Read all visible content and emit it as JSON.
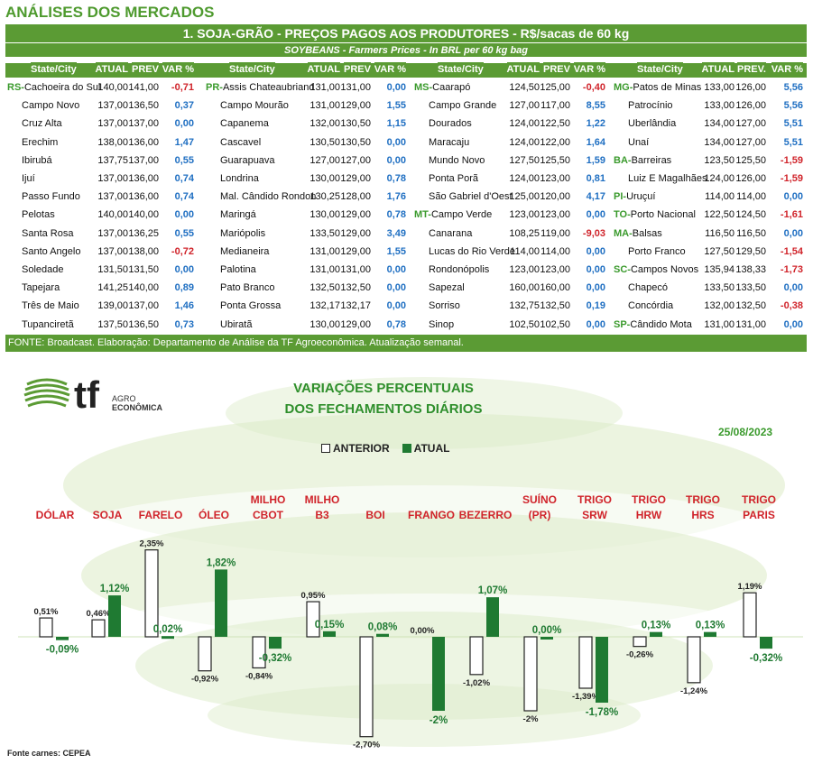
{
  "section_title": "ANÁLISES DOS MERCADOS",
  "table": {
    "title": "1. SOJA-GRÃO - PREÇOS PAGOS AOS PRODUTORES - R$/sacas de 60 kg",
    "subtitle": "SOYBEANS - Farmers Prices - In BRL per 60 kg bag",
    "footer": "FONTE: Broadcast. Elaboração: Departamento de Análise da TF Agroeconômica. Atualização semanal.",
    "groups": [
      {
        "headers": [
          "State/City",
          "ATUAL",
          "PREV",
          "VAR %"
        ],
        "rows": [
          {
            "code": "RS",
            "city": "Cachoeira do Sul",
            "atual": "140,00",
            "prev": "141,00",
            "var": "-0,71"
          },
          {
            "code": "",
            "city": "Campo Novo",
            "atual": "137,00",
            "prev": "136,50",
            "var": "0,37"
          },
          {
            "code": "",
            "city": "Cruz Alta",
            "atual": "137,00",
            "prev": "137,00",
            "var": "0,00"
          },
          {
            "code": "",
            "city": "Erechim",
            "atual": "138,00",
            "prev": "136,00",
            "var": "1,47"
          },
          {
            "code": "",
            "city": "Ibirubá",
            "atual": "137,75",
            "prev": "137,00",
            "var": "0,55"
          },
          {
            "code": "",
            "city": "Ijuí",
            "atual": "137,00",
            "prev": "136,00",
            "var": "0,74"
          },
          {
            "code": "",
            "city": "Passo Fundo",
            "atual": "137,00",
            "prev": "136,00",
            "var": "0,74"
          },
          {
            "code": "",
            "city": "Pelotas",
            "atual": "140,00",
            "prev": "140,00",
            "var": "0,00"
          },
          {
            "code": "",
            "city": "Santa Rosa",
            "atual": "137,00",
            "prev": "136,25",
            "var": "0,55"
          },
          {
            "code": "",
            "city": "Santo Angelo",
            "atual": "137,00",
            "prev": "138,00",
            "var": "-0,72"
          },
          {
            "code": "",
            "city": "Soledade",
            "atual": "131,50",
            "prev": "131,50",
            "var": "0,00"
          },
          {
            "code": "",
            "city": "Tapejara",
            "atual": "141,25",
            "prev": "140,00",
            "var": "0,89"
          },
          {
            "code": "",
            "city": "Três de Maio",
            "atual": "139,00",
            "prev": "137,00",
            "var": "1,46"
          },
          {
            "code": "",
            "city": "Tupanciretã",
            "atual": "137,50",
            "prev": "136,50",
            "var": "0,73"
          }
        ]
      },
      {
        "headers": [
          "State/City",
          "ATUAL",
          "PREV",
          "VAR %"
        ],
        "rows": [
          {
            "code": "PR",
            "city": "Assis Chateaubriand",
            "atual": "131,00",
            "prev": "131,00",
            "var": "0,00"
          },
          {
            "code": "",
            "city": "Campo Mourão",
            "atual": "131,00",
            "prev": "129,00",
            "var": "1,55"
          },
          {
            "code": "",
            "city": "Capanema",
            "atual": "132,00",
            "prev": "130,50",
            "var": "1,15"
          },
          {
            "code": "",
            "city": "Cascavel",
            "atual": "130,50",
            "prev": "130,50",
            "var": "0,00"
          },
          {
            "code": "",
            "city": "Guarapuava",
            "atual": "127,00",
            "prev": "127,00",
            "var": "0,00"
          },
          {
            "code": "",
            "city": "Londrina",
            "atual": "130,00",
            "prev": "129,00",
            "var": "0,78"
          },
          {
            "code": "",
            "city": "Mal. Cândido Rondon",
            "atual": "130,25",
            "prev": "128,00",
            "var": "1,76"
          },
          {
            "code": "",
            "city": "Maringá",
            "atual": "130,00",
            "prev": "129,00",
            "var": "0,78"
          },
          {
            "code": "",
            "city": "Mariópolis",
            "atual": "133,50",
            "prev": "129,00",
            "var": "3,49"
          },
          {
            "code": "",
            "city": "Medianeira",
            "atual": "131,00",
            "prev": "129,00",
            "var": "1,55"
          },
          {
            "code": "",
            "city": "Palotina",
            "atual": "131,00",
            "prev": "131,00",
            "var": "0,00"
          },
          {
            "code": "",
            "city": "Pato Branco",
            "atual": "132,50",
            "prev": "132,50",
            "var": "0,00"
          },
          {
            "code": "",
            "city": "Ponta Grossa",
            "atual": "132,17",
            "prev": "132,17",
            "var": "0,00"
          },
          {
            "code": "",
            "city": "Ubiratã",
            "atual": "130,00",
            "prev": "129,00",
            "var": "0,78"
          }
        ]
      },
      {
        "headers": [
          "State/City",
          "ATUAL",
          "PREV",
          "VAR %"
        ],
        "rows": [
          {
            "code": "MS",
            "city": "Caarapó",
            "atual": "124,50",
            "prev": "125,00",
            "var": "-0,40"
          },
          {
            "code": "",
            "city": "Campo Grande",
            "atual": "127,00",
            "prev": "117,00",
            "var": "8,55"
          },
          {
            "code": "",
            "city": "Dourados",
            "atual": "124,00",
            "prev": "122,50",
            "var": "1,22"
          },
          {
            "code": "",
            "city": "Maracaju",
            "atual": "124,00",
            "prev": "122,00",
            "var": "1,64"
          },
          {
            "code": "",
            "city": "Mundo Novo",
            "atual": "127,50",
            "prev": "125,50",
            "var": "1,59"
          },
          {
            "code": "",
            "city": "Ponta Porã",
            "atual": "124,00",
            "prev": "123,00",
            "var": "0,81"
          },
          {
            "code": "",
            "city": "São Gabriel d'Oest",
            "atual": "125,00",
            "prev": "120,00",
            "var": "4,17"
          },
          {
            "code": "MT",
            "city": "Campo Verde",
            "atual": "123,00",
            "prev": "123,00",
            "var": "0,00"
          },
          {
            "code": "",
            "city": "Canarana",
            "atual": "108,25",
            "prev": "119,00",
            "var": "-9,03"
          },
          {
            "code": "",
            "city": "Lucas do Rio Verde",
            "atual": "114,00",
            "prev": "114,00",
            "var": "0,00"
          },
          {
            "code": "",
            "city": "Rondonópolis",
            "atual": "123,00",
            "prev": "123,00",
            "var": "0,00"
          },
          {
            "code": "",
            "city": "Sapezal",
            "atual": "160,00",
            "prev": "160,00",
            "var": "0,00"
          },
          {
            "code": "",
            "city": "Sorriso",
            "atual": "132,75",
            "prev": "132,50",
            "var": "0,19"
          },
          {
            "code": "",
            "city": "Sinop",
            "atual": "102,50",
            "prev": "102,50",
            "var": "0,00"
          }
        ]
      },
      {
        "headers": [
          "State/City",
          "ATUAL",
          "PREV.",
          "VAR %"
        ],
        "rows": [
          {
            "code": "MG",
            "city": "Patos de Minas",
            "atual": "133,00",
            "prev": "126,00",
            "var": "5,56"
          },
          {
            "code": "",
            "city": "Patrocínio",
            "atual": "133,00",
            "prev": "126,00",
            "var": "5,56"
          },
          {
            "code": "",
            "city": "Uberlândia",
            "atual": "134,00",
            "prev": "127,00",
            "var": "5,51"
          },
          {
            "code": "",
            "city": "Unaí",
            "atual": "134,00",
            "prev": "127,00",
            "var": "5,51"
          },
          {
            "code": "BA",
            "city": "Barreiras",
            "atual": "123,50",
            "prev": "125,50",
            "var": "-1,59"
          },
          {
            "code": "",
            "city": "Luiz E Magalhães",
            "atual": "124,00",
            "prev": "126,00",
            "var": "-1,59"
          },
          {
            "code": "PI",
            "city": "Uruçuí",
            "atual": "114,00",
            "prev": "114,00",
            "var": "0,00"
          },
          {
            "code": "TO",
            "city": "Porto Nacional",
            "atual": "122,50",
            "prev": "124,50",
            "var": "-1,61"
          },
          {
            "code": "MA",
            "city": "Balsas",
            "atual": "116,50",
            "prev": "116,50",
            "var": "0,00"
          },
          {
            "code": "",
            "city": "Porto Franco",
            "atual": "127,50",
            "prev": "129,50",
            "var": "-1,54"
          },
          {
            "code": "SC",
            "city": "Campos Novos",
            "atual": "135,94",
            "prev": "138,33",
            "var": "-1,73"
          },
          {
            "code": "",
            "city": "Chapecó",
            "atual": "133,50",
            "prev": "133,50",
            "var": "0,00"
          },
          {
            "code": "",
            "city": "Concórdia",
            "atual": "132,00",
            "prev": "132,50",
            "var": "-0,38"
          },
          {
            "code": "SP",
            "city": "Cândido Mota",
            "atual": "131,00",
            "prev": "131,00",
            "var": "0,00"
          }
        ]
      }
    ]
  },
  "logo": {
    "mark": "tf",
    "line1": "AGRO",
    "line2": "ECONÔMICA"
  },
  "chart_data": {
    "type": "bar",
    "title": "VARIAÇÕES PERCENTUAIS",
    "subtitle": "DOS FECHAMENTOS DIÁRIOS",
    "date": "25/08/2023",
    "legend_position": "top-center",
    "categories": [
      "DÓLAR",
      "SOJA",
      "FARELO",
      "ÓLEO",
      "MILHO CBOT",
      "MILHO B3",
      "BOI",
      "FRANGO",
      "BEZERRO",
      "SUÍNO (PR)",
      "TRIGO SRW",
      "TRIGO HRW",
      "TRIGO HRS",
      "TRIGO PARIS"
    ],
    "series": [
      {
        "name": "ANTERIOR",
        "color": "#ffffff",
        "values": [
          0.51,
          0.46,
          2.35,
          -0.92,
          -0.84,
          0.95,
          -2.7,
          null,
          -1.02,
          -2.0,
          -1.39,
          -0.26,
          -1.24,
          1.19
        ],
        "labels": [
          "0,51%",
          "0,46%",
          "2,35%",
          "-0,92%",
          "-0,84%",
          "0,95%",
          "-2,70%",
          "",
          "-1,02%",
          "-2%",
          "-1,39%",
          "-0,26%",
          "-1,24%",
          "1,19%"
        ]
      },
      {
        "name": "ATUAL",
        "color": "#1f7a32",
        "values": [
          -0.09,
          1.12,
          0.02,
          1.82,
          -0.32,
          0.15,
          0.08,
          -2.0,
          1.07,
          0.0,
          -1.78,
          0.13,
          0.13,
          -0.32
        ],
        "labels": [
          "-0,09%",
          "1,12%",
          "0,02%",
          "1,82%",
          "-0,32%",
          "0,15%",
          "0,08%",
          "-2%",
          "1,07%",
          "0,00%",
          "-1,78%",
          "0,13%",
          "0,13%",
          "-0,32%"
        ]
      }
    ],
    "extra_label": "0,00%",
    "source": "Fonte carnes: CEPEA"
  },
  "colors": {
    "brand_green": "#5b9b34",
    "title_green": "#2f8f2c",
    "category_red": "#d0242b",
    "positive_blue": "#1f6fc2",
    "negative_red": "#d0242b",
    "bar_green": "#1f7a32",
    "watermark": "#dcebc7"
  }
}
